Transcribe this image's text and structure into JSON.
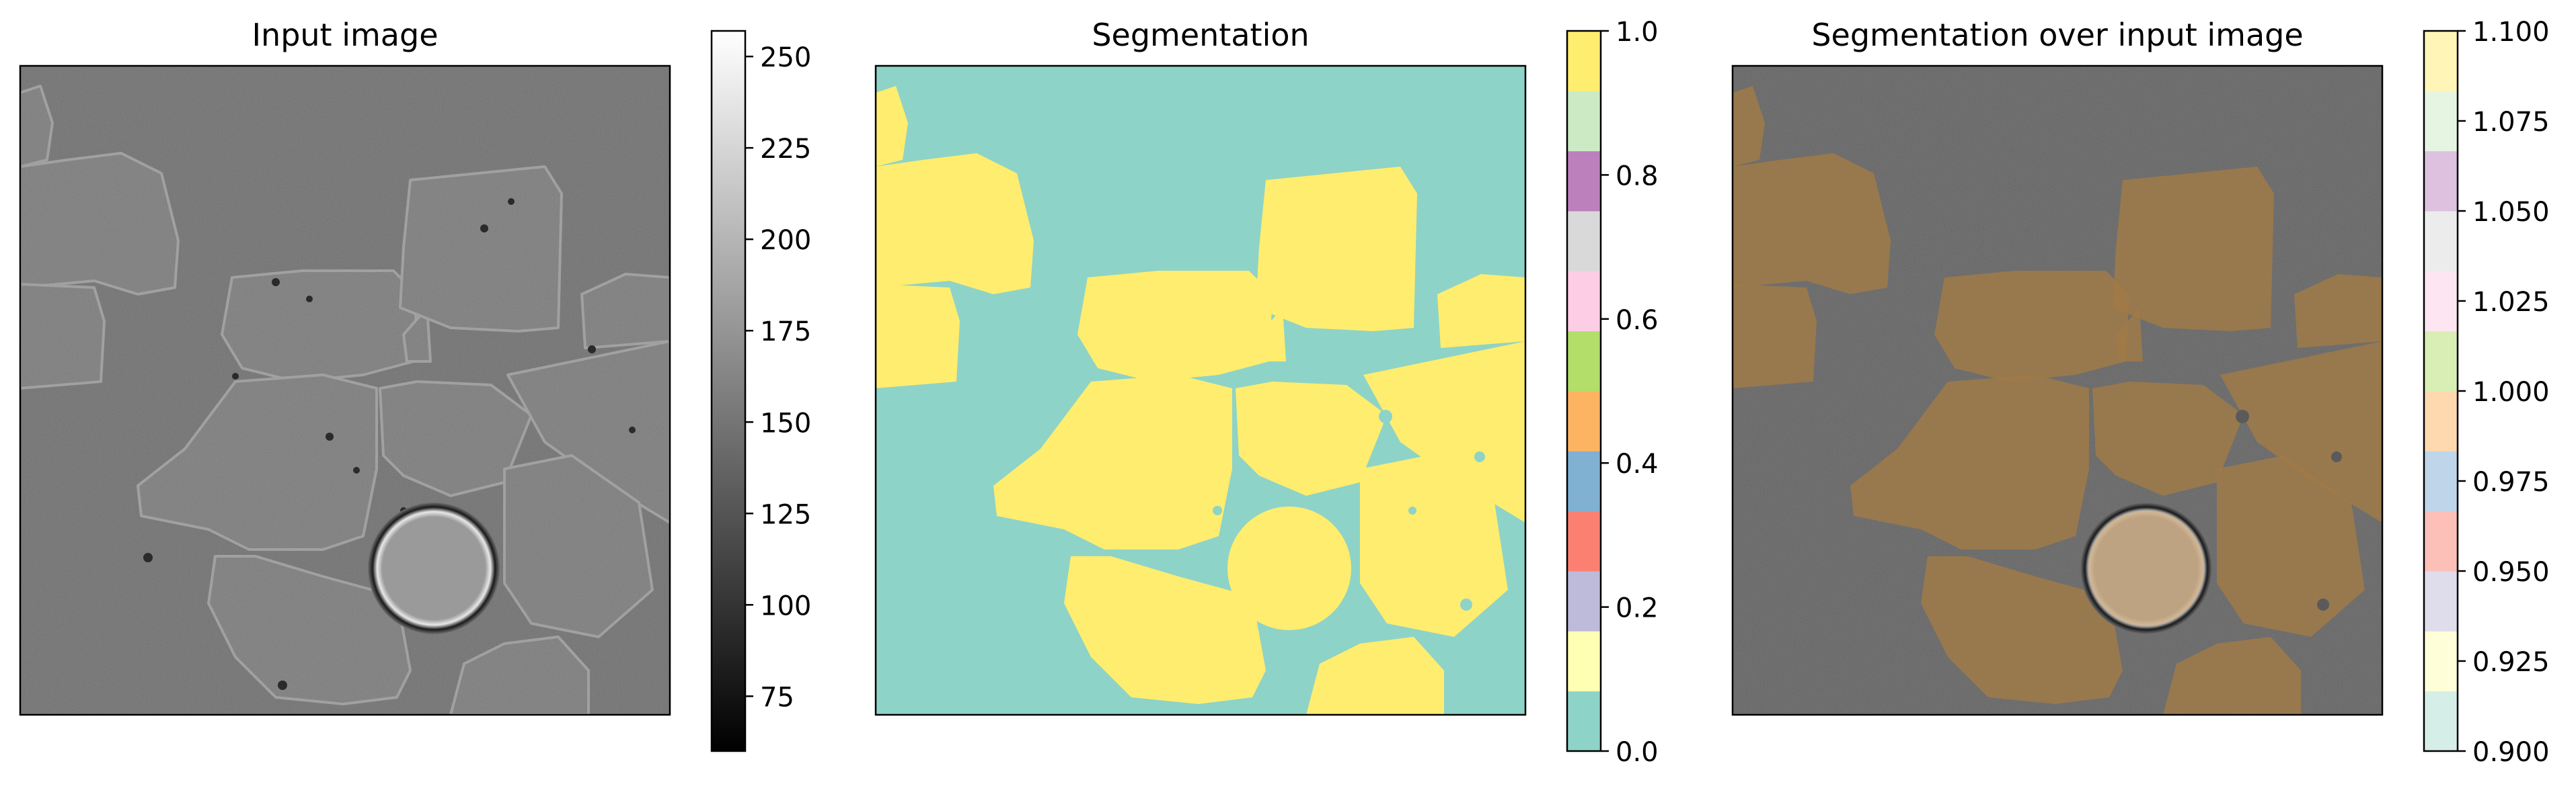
{
  "figure": {
    "panels": [
      {
        "title": "Input image",
        "content": "Grayscale microscopy image of cells",
        "colorbar_colormap": "gray"
      },
      {
        "title": "Segmentation",
        "content": "Binary segmentation mask, background teal, cells yellow",
        "colorbar_colormap": "Set3"
      },
      {
        "title": "Segmentation over input image",
        "content": "Mask overlaid semi-transparently on the grayscale image",
        "colorbar_colormap": "Pastel2 / Set3 pastel"
      }
    ]
  },
  "chart_data": [
    {
      "type": "heatmap",
      "title": "Input image",
      "colormap": "gray",
      "colorbar": {
        "min": 60,
        "max": 257,
        "ticks": [
          75,
          100,
          125,
          150,
          175,
          200,
          225,
          250
        ],
        "tick_labels": [
          "75",
          "100",
          "125",
          "150",
          "175",
          "200",
          "225",
          "250"
        ]
      },
      "xticks": [],
      "yticks": []
    },
    {
      "type": "heatmap",
      "title": "Segmentation",
      "colormap": "Set3 (discrete)",
      "values": {
        "background": 0,
        "cell": 1
      },
      "colorbar": {
        "min": 0.0,
        "max": 1.0,
        "ticks": [
          0.0,
          0.2,
          0.4,
          0.6,
          0.8,
          1.0
        ],
        "tick_labels": [
          "0.0",
          "0.2",
          "0.4",
          "0.6",
          "0.8",
          "1.0"
        ],
        "segment_colors": [
          "#8ed3c7",
          "#ffffb3",
          "#bebada",
          "#fb8072",
          "#80b1d3",
          "#fdb462",
          "#b3de69",
          "#fccde5",
          "#d9d9d9",
          "#bc80bd",
          "#ccebc5",
          "#ffed6f"
        ]
      },
      "xticks": [],
      "yticks": []
    },
    {
      "type": "heatmap",
      "title": "Segmentation over input image",
      "colormap": "pastel (discrete)",
      "colorbar": {
        "min": 0.9,
        "max": 1.1,
        "ticks": [
          0.9,
          0.925,
          0.95,
          0.975,
          1.0,
          1.025,
          1.05,
          1.075,
          1.1
        ],
        "tick_labels": [
          "0.900",
          "0.925",
          "0.950",
          "0.975",
          "1.000",
          "1.025",
          "1.050",
          "1.075",
          "1.100"
        ],
        "segment_colors": [
          "#d6eee8",
          "#fefed9",
          "#dfdcec",
          "#fdc0b8",
          "#bfd6ea",
          "#fed9b0",
          "#d9eeb4",
          "#fde6f1",
          "#ececec",
          "#ddc1de",
          "#e6f5e1",
          "#fff5b6"
        ]
      },
      "xticks": [],
      "yticks": []
    }
  ]
}
